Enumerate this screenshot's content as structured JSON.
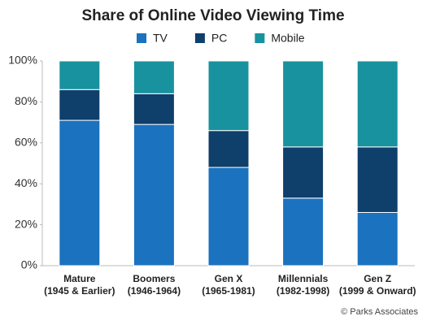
{
  "chart_data": {
    "type": "stacked-bar",
    "title": "Share of Online Video Viewing Time",
    "categories": [
      [
        "Mature",
        "(1945 & Earlier)"
      ],
      [
        "Boomers",
        "(1946-1964)"
      ],
      [
        "Gen X",
        "(1965-1981)"
      ],
      [
        "Millennials",
        "(1982-1998)"
      ],
      [
        "Gen Z",
        "(1999 & Onward)"
      ]
    ],
    "series": [
      {
        "name": "TV",
        "color": "#1b72bf",
        "values": [
          71,
          69,
          48,
          33,
          26
        ]
      },
      {
        "name": "PC",
        "color": "#0f3f6b",
        "values": [
          15,
          15,
          18,
          25,
          32
        ]
      },
      {
        "name": "Mobile",
        "color": "#18929e",
        "values": [
          14,
          16,
          34,
          42,
          42
        ]
      }
    ],
    "ylim": [
      0,
      100
    ],
    "yticks": [
      {
        "value": 0,
        "label": "0%"
      },
      {
        "value": 20,
        "label": "20%"
      },
      {
        "value": 40,
        "label": "40%"
      },
      {
        "value": 60,
        "label": "60%"
      },
      {
        "value": 80,
        "label": "80%"
      },
      {
        "value": 100,
        "label": "100%"
      }
    ],
    "source": "© Parks Associates"
  }
}
